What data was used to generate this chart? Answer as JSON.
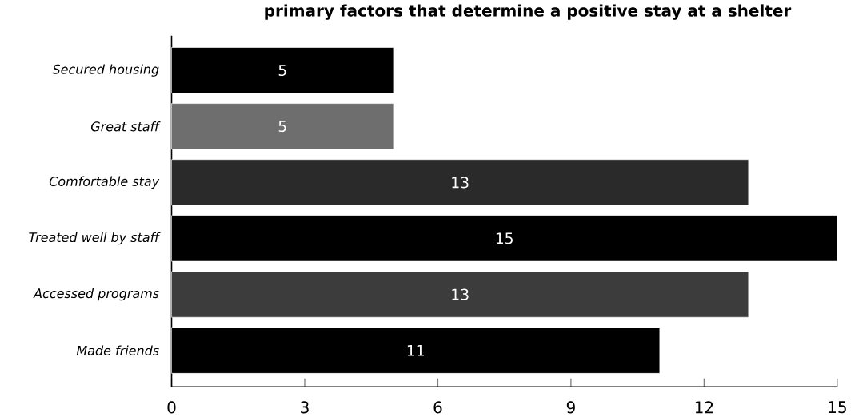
{
  "chart_data": {
    "type": "bar",
    "orientation": "horizontal",
    "title": "primary factors that determine a positive stay at a shelter",
    "categories": [
      "Secured housing",
      "Great staff",
      "Comfortable stay",
      "Treated well by staff",
      "Accessed programs",
      "Made friends"
    ],
    "values": [
      5,
      5,
      13,
      15,
      13,
      11
    ],
    "colors": [
      "#000000",
      "#6e6e6e",
      "#2a2a2a",
      "#000000",
      "#3c3c3c",
      "#000000"
    ],
    "xlim": [
      0,
      15
    ],
    "xticks": [
      0,
      3,
      6,
      9,
      12,
      15
    ],
    "data_labels": true
  }
}
